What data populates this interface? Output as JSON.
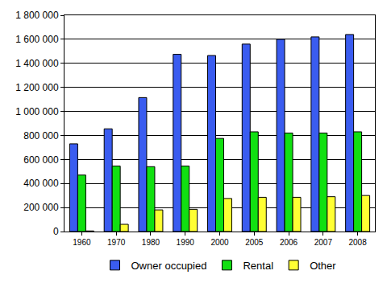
{
  "chart_data": {
    "type": "bar",
    "categories": [
      "1960",
      "1970",
      "1980",
      "1990",
      "2000",
      "2005",
      "2006",
      "2007",
      "2008"
    ],
    "series": [
      {
        "name": "Owner occupied",
        "color": "#3a5cf0",
        "values": [
          730000,
          855000,
          1115000,
          1475000,
          1465000,
          1560000,
          1600000,
          1620000,
          1640000
        ]
      },
      {
        "name": "Rental",
        "color": "#11e011",
        "values": [
          470000,
          545000,
          540000,
          545000,
          775000,
          830000,
          820000,
          820000,
          830000
        ]
      },
      {
        "name": "Other",
        "color": "#ffff33",
        "values": [
          5000,
          60000,
          180000,
          185000,
          275000,
          285000,
          285000,
          290000,
          300000
        ]
      }
    ],
    "ylim": [
      0,
      1800000
    ],
    "yticks": [
      0,
      {
        "value": 200000,
        "label": "200 000"
      },
      {
        "value": 400000,
        "label": "400 000"
      },
      {
        "value": 600000,
        "label": "600 000"
      },
      {
        "value": 800000,
        "label": "800 000"
      },
      {
        "value": 1000000,
        "label": "1 000 000"
      },
      {
        "value": 1200000,
        "label": "1 200 000"
      },
      {
        "value": 1400000,
        "label": "1 400 000"
      },
      {
        "value": 1600000,
        "label": "1 600 000"
      },
      {
        "value": 1800000,
        "label": "1 800 000"
      }
    ],
    "grid": true,
    "legend": "bottom"
  }
}
